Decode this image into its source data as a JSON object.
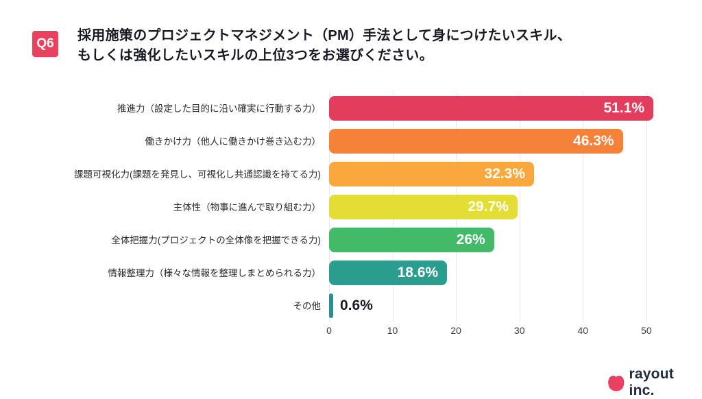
{
  "question": {
    "badge": "Q6",
    "title_line1": "採用施策のプロジェクトマネジメント（PM）手法として身につけたいスキル、",
    "title_line2": "もしくは強化したいスキルの上位3つをお選びください。"
  },
  "chart_data": {
    "type": "bar",
    "orientation": "horizontal",
    "categories": [
      "推進力（設定した目的に沿い確実に行動する力）",
      "働きかけ力（他人に働きかけ巻き込む力）",
      "課題可視化力(課題を発見し、可視化し共通認識を持てる力)",
      "主体性（物事に進んで取り組む力）",
      "全体把握力(プロジェクトの全体像を把握できる力)",
      "情報整理力（様々な情報を整理しまとめられる力）",
      "その他"
    ],
    "values": [
      51.1,
      46.3,
      32.3,
      29.7,
      26,
      18.6,
      0.6
    ],
    "value_labels": [
      "51.1%",
      "46.3%",
      "32.3%",
      "29.7%",
      "26%",
      "18.6%",
      "0.6%"
    ],
    "bar_colors": [
      "#E23D5C",
      "#F58238",
      "#F9A83D",
      "#E3DD34",
      "#42BA68",
      "#2B9D8F",
      "#2C8F96"
    ],
    "xlim": [
      0,
      52.5
    ],
    "xticks": [
      0,
      10,
      20,
      30,
      40,
      50
    ],
    "grid": true,
    "legend_position": "none",
    "inside_label_color": "#FFFFFF",
    "outside_label_color": "#1A1A24"
  },
  "branding": {
    "logo_text": "rayout inc.",
    "logo_blob_color": "#E8425F",
    "logo_text_color": "#232B3E"
  },
  "theme": {
    "badge_bg": "#E8425F",
    "badge_text": "#FFFFFF",
    "title_color": "#1A1A24",
    "category_label_color": "#2B2B2B",
    "axis_label_color": "#3C3C3C",
    "gridline_color": "#E9E9E9",
    "background": "#FFFFFF"
  }
}
